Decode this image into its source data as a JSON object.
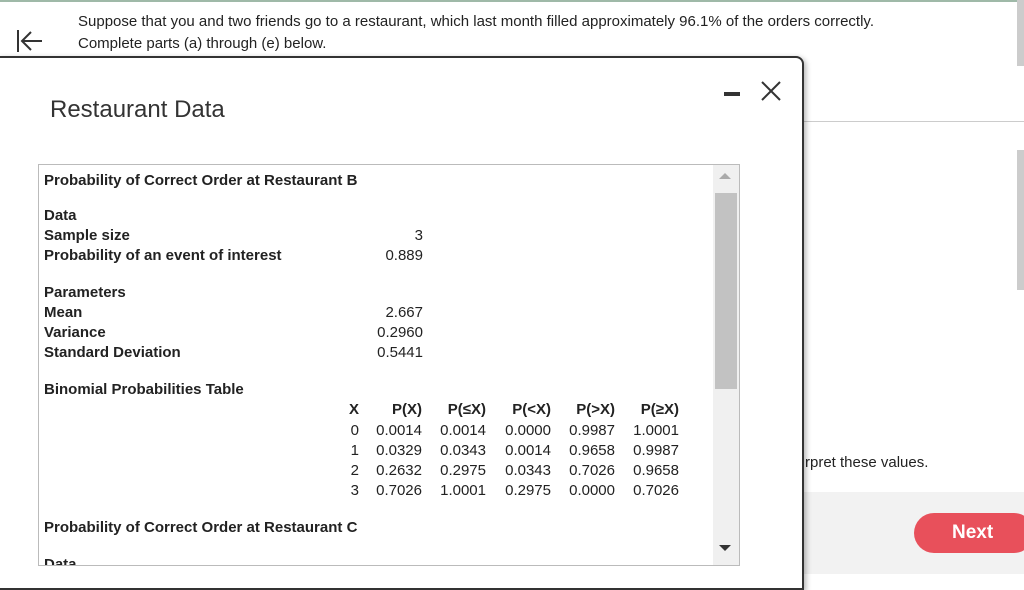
{
  "header": {
    "question": "Suppose that you and two friends go to a restaurant, which last month filled approximately 96.1% of the orders correctly.",
    "instruction": "Complete parts (a) through (e) below."
  },
  "modal": {
    "title": "Restaurant Data",
    "section_b": {
      "heading": "Probability of Correct Order at Restaurant B",
      "data": {
        "heading": "Data",
        "rows": [
          [
            "Sample size",
            "3"
          ],
          [
            "Probability of an event of interest",
            "0.889"
          ]
        ]
      },
      "parameters": {
        "heading": "Parameters",
        "rows": [
          [
            "Mean",
            "2.667"
          ],
          [
            "Variance",
            "0.2960"
          ],
          [
            "Standard Deviation",
            "0.5441"
          ]
        ]
      },
      "table": {
        "heading": "Binomial Probabilities Table",
        "columns": [
          "X",
          "P(X)",
          "P(≤X)",
          "P(<X)",
          "P(>X)",
          "P(≥X)"
        ],
        "rows": [
          [
            "0",
            "0.0014",
            "0.0014",
            "0.0000",
            "0.9987",
            "1.0001"
          ],
          [
            "1",
            "0.0329",
            "0.0343",
            "0.0014",
            "0.9658",
            "0.9987"
          ],
          [
            "2",
            "0.2632",
            "0.2975",
            "0.0343",
            "0.7026",
            "0.9658"
          ],
          [
            "3",
            "0.7026",
            "1.0001",
            "0.2975",
            "0.0000",
            "0.7026"
          ]
        ]
      }
    },
    "section_c": {
      "heading": "Probability of Correct Order at Restaurant C",
      "data_heading": "Data"
    }
  },
  "background": {
    "text": "rpret these values.",
    "next_button": "Next"
  }
}
